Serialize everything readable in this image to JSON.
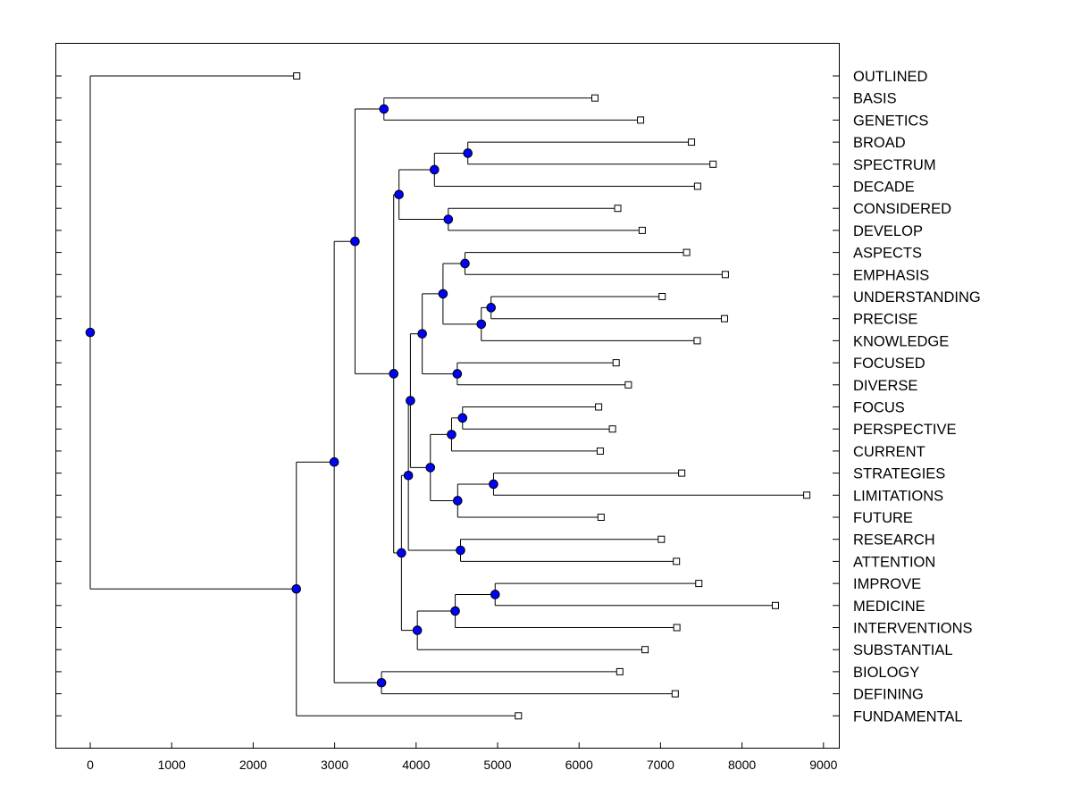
{
  "chart_data": {
    "type": "dendrogram",
    "title": "",
    "xlabel": "",
    "ylabel": "",
    "xlim": [
      -430,
      9200
    ],
    "x_ticks": [
      0,
      1000,
      2000,
      3000,
      4000,
      5000,
      6000,
      7000,
      8000,
      9000
    ],
    "grid": false,
    "colors": {
      "node_fill": "#0000ff",
      "line": "#000000",
      "leaf_fill": "#ffffff"
    },
    "leaves": [
      {
        "label": "OUTLINED",
        "value": 2535
      },
      {
        "label": "BASIS",
        "value": 6195
      },
      {
        "label": "GENETICS",
        "value": 6755
      },
      {
        "label": "BROAD",
        "value": 7380
      },
      {
        "label": "SPECTRUM",
        "value": 7645
      },
      {
        "label": "DECADE",
        "value": 7455
      },
      {
        "label": "CONSIDERED",
        "value": 6475
      },
      {
        "label": "DEVELOP",
        "value": 6775
      },
      {
        "label": "ASPECTS",
        "value": 7320
      },
      {
        "label": "EMPHASIS",
        "value": 7795
      },
      {
        "label": "UNDERSTANDING",
        "value": 7020
      },
      {
        "label": "PRECISE",
        "value": 7785
      },
      {
        "label": "KNOWLEDGE",
        "value": 7450
      },
      {
        "label": "FOCUSED",
        "value": 6455
      },
      {
        "label": "DIVERSE",
        "value": 6605
      },
      {
        "label": "FOCUS",
        "value": 6240
      },
      {
        "label": "PERSPECTIVE",
        "value": 6410
      },
      {
        "label": "CURRENT",
        "value": 6260
      },
      {
        "label": "STRATEGIES",
        "value": 7260
      },
      {
        "label": "LIMITATIONS",
        "value": 8795
      },
      {
        "label": "FUTURE",
        "value": 6270
      },
      {
        "label": "RESEARCH",
        "value": 7010
      },
      {
        "label": "ATTENTION",
        "value": 7195
      },
      {
        "label": "IMPROVE",
        "value": 7470
      },
      {
        "label": "MEDICINE",
        "value": 8410
      },
      {
        "label": "INTERVENTIONS",
        "value": 7200
      },
      {
        "label": "SUBSTANTIAL",
        "value": 6810
      },
      {
        "label": "BIOLOGY",
        "value": 6500
      },
      {
        "label": "DEFINING",
        "value": 7180
      },
      {
        "label": "FUNDAMENTAL",
        "value": 5255
      }
    ],
    "nodes": [
      {
        "value": 3605,
        "children": [
          "L1",
          "L2"
        ]
      },
      {
        "value": 4635,
        "children": [
          "L3",
          "L4"
        ]
      },
      {
        "value": 4225,
        "children": [
          "N1",
          "L5"
        ]
      },
      {
        "value": 4395,
        "children": [
          "L6",
          "L7"
        ]
      },
      {
        "value": 3790,
        "children": [
          "N2",
          "N3"
        ]
      },
      {
        "value": 4600,
        "children": [
          "L8",
          "L9"
        ]
      },
      {
        "value": 4920,
        "children": [
          "L10",
          "L11"
        ]
      },
      {
        "value": 4800,
        "children": [
          "N6",
          "L12"
        ]
      },
      {
        "value": 4330,
        "children": [
          "N5",
          "N7"
        ]
      },
      {
        "value": 4505,
        "children": [
          "L13",
          "L14"
        ]
      },
      {
        "value": 4075,
        "children": [
          "N8",
          "N9"
        ]
      },
      {
        "value": 4570,
        "children": [
          "L15",
          "L16"
        ]
      },
      {
        "value": 4435,
        "children": [
          "N11",
          "L17"
        ]
      },
      {
        "value": 4950,
        "children": [
          "L18",
          "L19"
        ]
      },
      {
        "value": 4510,
        "children": [
          "N13",
          "L20"
        ]
      },
      {
        "value": 4175,
        "children": [
          "N12",
          "N14"
        ]
      },
      {
        "value": 3930,
        "children": [
          "N10",
          "N15"
        ]
      },
      {
        "value": 4545,
        "children": [
          "L21",
          "L22"
        ]
      },
      {
        "value": 3905,
        "children": [
          "N16",
          "N17"
        ]
      },
      {
        "value": 4970,
        "children": [
          "L23",
          "L24"
        ]
      },
      {
        "value": 4480,
        "children": [
          "N19",
          "L25"
        ]
      },
      {
        "value": 4015,
        "children": [
          "N20",
          "L26"
        ]
      },
      {
        "value": 3820,
        "children": [
          "N18",
          "N21"
        ]
      },
      {
        "value": 3725,
        "children": [
          "N4",
          "N22"
        ]
      },
      {
        "value": 3250,
        "children": [
          "N0",
          "N23"
        ]
      },
      {
        "value": 3575,
        "children": [
          "L27",
          "L28"
        ]
      },
      {
        "value": 2995,
        "children": [
          "N24",
          "N25"
        ]
      },
      {
        "value": 2530,
        "children": [
          "N26",
          "L29"
        ]
      },
      {
        "value": 0,
        "children": [
          "L0",
          "N27"
        ]
      }
    ]
  }
}
